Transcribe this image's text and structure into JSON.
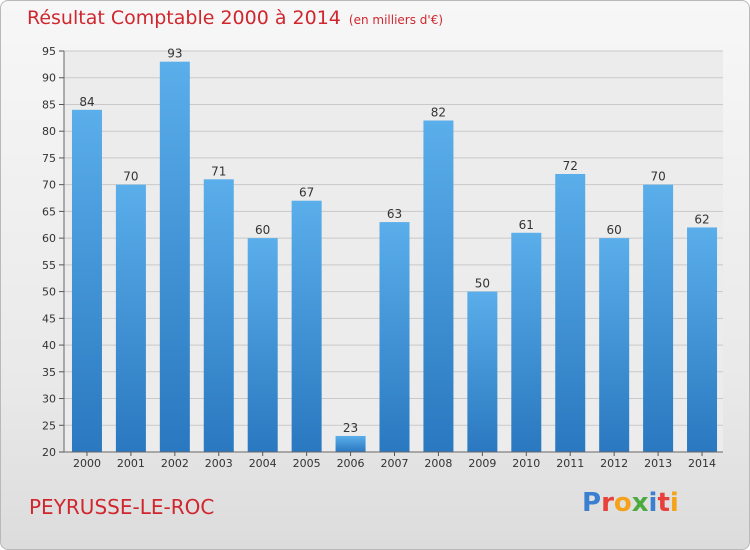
{
  "header": {
    "title": "Résultat Comptable 2000 à 2014",
    "unit_note": "(en milliers d'€)"
  },
  "footer": {
    "commune": "PEYRUSSE-LE-ROC",
    "logo_text": "Proxiti",
    "logo_colors": [
      "#3a7fd0",
      "#e8403a",
      "#f5a21b",
      "#4caa3e",
      "#3a7fd0",
      "#e8403a",
      "#f5a21b"
    ]
  },
  "colors": {
    "title": "#d0262e",
    "bar_top": "#5aaeea",
    "bar_bottom": "#2a78c0",
    "grid": "#c9c9c9",
    "axis_text": "#333333"
  },
  "chart_data": {
    "type": "bar",
    "title": "Résultat Comptable 2000 à 2014",
    "subtitle": "(en milliers d'€)",
    "categories": [
      "2000",
      "2001",
      "2002",
      "2003",
      "2004",
      "2005",
      "2006",
      "2007",
      "2008",
      "2009",
      "2010",
      "2011",
      "2012",
      "2013",
      "2014"
    ],
    "values": [
      84,
      70,
      93,
      71,
      60,
      67,
      23,
      63,
      82,
      50,
      61,
      72,
      60,
      70,
      62
    ],
    "ylim": [
      20,
      95
    ],
    "yticks": [
      20,
      25,
      30,
      35,
      40,
      45,
      50,
      55,
      60,
      65,
      70,
      75,
      80,
      85,
      90,
      95
    ],
    "grid": true,
    "data_labels": true,
    "xlabel": "",
    "ylabel": ""
  }
}
